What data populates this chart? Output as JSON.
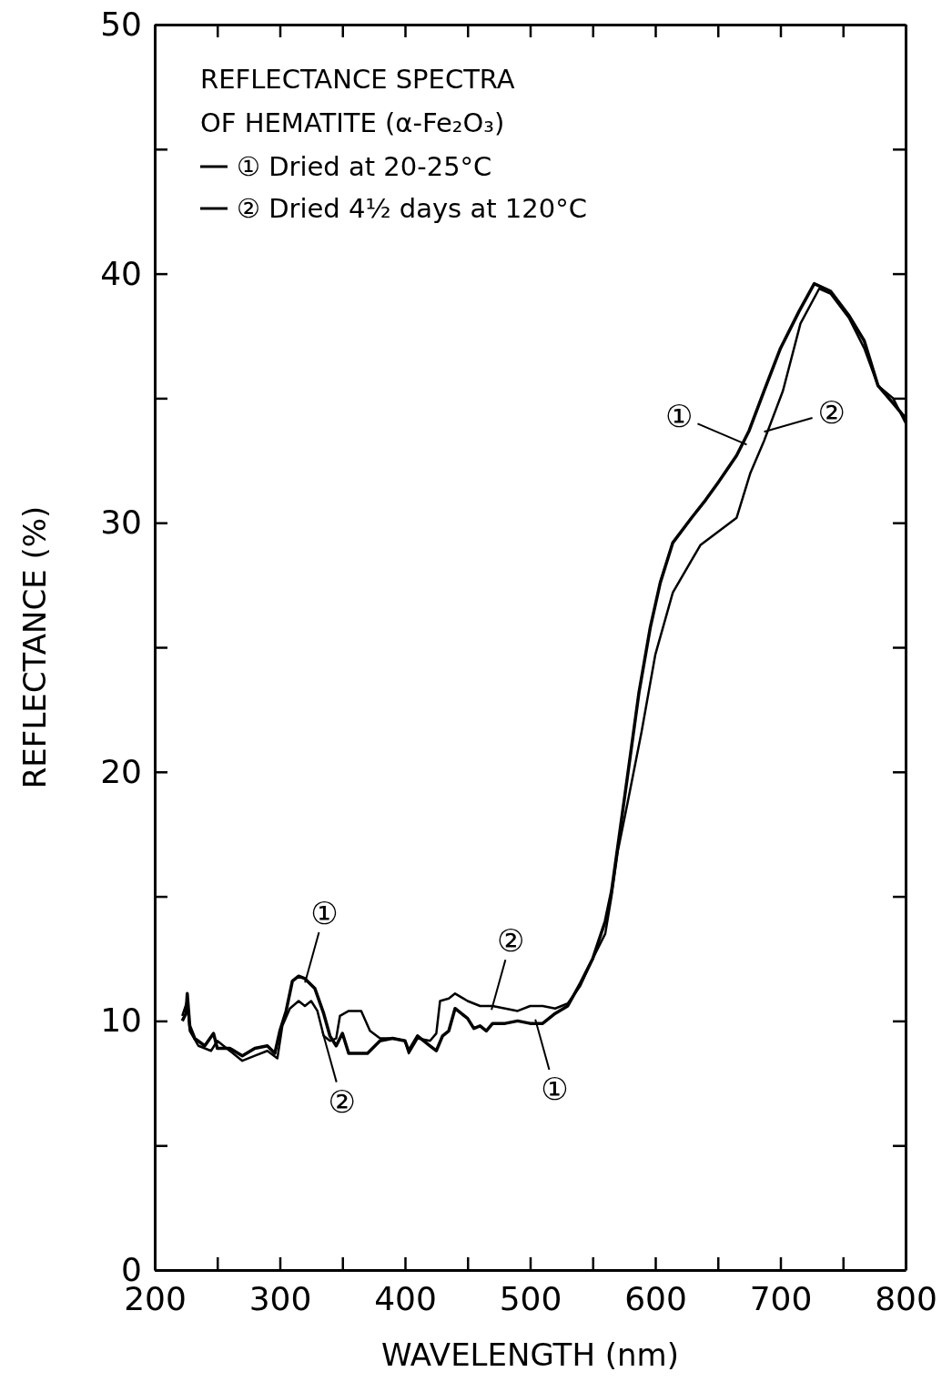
{
  "chart_data": {
    "type": "line",
    "title": "REFLECTANCE SPECTRA OF HEMATITE (α-Fe₂O₃)",
    "xlabel": "WAVELENGTH (nm)",
    "ylabel": "REFLECTANCE (%)",
    "xlim": [
      200,
      800
    ],
    "ylim": [
      0,
      50
    ],
    "xticks": [
      200,
      {
        "value": 250,
        "label": null
      },
      300,
      {
        "value": 350,
        "label": null
      },
      400,
      {
        "value": 450,
        "label": null
      },
      500,
      {
        "value": 550,
        "label": null
      },
      600,
      {
        "value": 650,
        "label": null
      },
      700,
      {
        "value": 750,
        "label": null
      },
      800
    ],
    "yticks": [
      0,
      {
        "value": 5,
        "label": null
      },
      10,
      {
        "value": 15,
        "label": null
      },
      20,
      {
        "value": 25,
        "label": null
      },
      30,
      {
        "value": 35,
        "label": null
      },
      40,
      {
        "value": 45,
        "label": null
      },
      50
    ],
    "legend": "top left",
    "grid": false,
    "line_style": "solid",
    "series": [
      {
        "name": "① Dried at 20-25°C",
        "color": "#000000",
        "x": [
          222,
          225,
          226,
          228,
          232,
          240,
          247,
          250,
          260,
          270,
          280,
          290,
          296,
          300,
          305,
          310,
          315,
          320,
          328,
          335,
          340,
          345,
          350,
          355,
          360,
          370,
          380,
          390,
          400,
          403,
          410,
          420,
          425,
          430,
          435,
          440,
          445,
          450,
          455,
          460,
          465,
          470,
          480,
          490,
          500,
          510,
          520,
          530,
          540,
          550,
          560,
          565,
          570,
          578,
          587,
          596,
          604,
          614,
          629,
          640,
          650,
          665,
          675,
          687,
          700,
          715,
          727,
          740,
          755,
          767,
          778,
          790,
          800
        ],
        "values": [
          10.0,
          10.3,
          11.1,
          9.8,
          9.3,
          9.0,
          9.5,
          8.9,
          8.9,
          8.6,
          8.9,
          9.0,
          8.7,
          9.6,
          10.4,
          11.6,
          11.8,
          11.7,
          11.3,
          10.3,
          9.4,
          9.0,
          9.5,
          8.7,
          8.7,
          8.7,
          9.2,
          9.3,
          9.2,
          8.8,
          9.4,
          9.0,
          8.8,
          9.4,
          9.6,
          10.5,
          10.3,
          10.1,
          9.7,
          9.8,
          9.6,
          9.9,
          9.9,
          10.0,
          9.9,
          9.9,
          10.3,
          10.6,
          11.5,
          12.5,
          14.0,
          15.2,
          17.0,
          19.9,
          23.2,
          25.8,
          27.6,
          29.2,
          30.2,
          30.9,
          31.6,
          32.7,
          33.7,
          35.3,
          37.0,
          38.5,
          39.6,
          39.3,
          38.3,
          37.3,
          35.5,
          34.8,
          34.2
        ]
      },
      {
        "name": "② Dried 4½ days at 120°C",
        "color": "#000000",
        "x": [
          222,
          226,
          228,
          235,
          245,
          250,
          260,
          270,
          280,
          290,
          298,
          302,
          308,
          315,
          320,
          325,
          330,
          335,
          340,
          345,
          348,
          355,
          365,
          372,
          380,
          390,
          400,
          403,
          410,
          420,
          425,
          428,
          435,
          440,
          450,
          460,
          470,
          480,
          490,
          500,
          510,
          520,
          530,
          540,
          550,
          560,
          565,
          570,
          578,
          589,
          600,
          614,
          636,
          665,
          676,
          687,
          702,
          716,
          731,
          740,
          755,
          767,
          778,
          790,
          800
        ],
        "values": [
          10.2,
          10.8,
          9.6,
          9.0,
          8.8,
          9.2,
          8.8,
          8.4,
          8.6,
          8.8,
          8.5,
          9.8,
          10.5,
          10.8,
          10.6,
          10.8,
          10.4,
          9.4,
          9.2,
          9.3,
          10.2,
          10.4,
          10.4,
          9.6,
          9.3,
          9.3,
          9.2,
          8.7,
          9.3,
          9.2,
          9.5,
          10.8,
          10.9,
          11.1,
          10.8,
          10.6,
          10.6,
          10.5,
          10.4,
          10.6,
          10.6,
          10.5,
          10.7,
          11.4,
          12.5,
          13.5,
          15.0,
          16.8,
          18.8,
          21.6,
          24.7,
          27.2,
          29.1,
          30.2,
          32.0,
          33.3,
          35.3,
          38.0,
          39.4,
          39.2,
          38.2,
          37.0,
          35.5,
          35.0,
          34.0
        ]
      }
    ],
    "annotations": [
      {
        "text": "①",
        "x": 321,
        "y": 11.7
      },
      {
        "text": "②",
        "x": 470,
        "y": 10.6
      },
      {
        "text": "①",
        "x": 505,
        "y": 9.9
      },
      {
        "text": "②",
        "x": 335,
        "y": 9.4
      },
      {
        "text": "①",
        "x": 670,
        "y": 33.2
      },
      {
        "text": "②",
        "x": 690,
        "y": 33.7
      }
    ]
  }
}
